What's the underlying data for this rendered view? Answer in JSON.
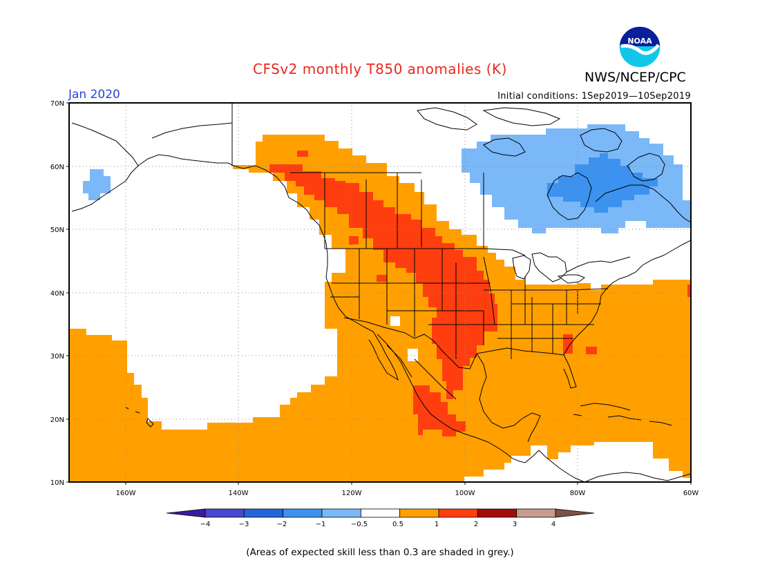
{
  "header": {
    "title": "CFSv2 monthly T850 anomalies (K)",
    "agency": "NWS/NCEP/CPC",
    "logo_text": "NOAA",
    "target_month": "Jan 2020",
    "initial_conditions": "Initial conditions: 1Sep2019—10Sep2019"
  },
  "axes": {
    "lat_labels": [
      "70N",
      "60N",
      "50N",
      "40N",
      "30N",
      "20N",
      "10N"
    ],
    "lon_labels": [
      "160W",
      "140W",
      "120W",
      "100W",
      "80W",
      "60W"
    ],
    "lat_range": [
      10,
      70
    ],
    "lon_range": [
      -170,
      -60
    ],
    "grid": true
  },
  "colorbar": {
    "labels": [
      "−4",
      "−3",
      "−2",
      "−1",
      "−0.5",
      "0.5",
      "1",
      "2",
      "3",
      "4"
    ],
    "colors": [
      "#3b1b9e",
      "#4b46cf",
      "#2266d8",
      "#3c92ee",
      "#7ab8f8",
      "#ffffff",
      "#ffa000",
      "#ff3e10",
      "#a40b0b",
      "#c59c8e",
      "#7a5244"
    ]
  },
  "regions": {
    "categories": [
      {
        "name": "-1 to -0.5",
        "color": "#7ab8f8"
      },
      {
        "name": "-2 to -1",
        "color": "#3c92ee"
      },
      {
        "name": "0.5 to 1",
        "color": "#ffa000"
      },
      {
        "name": "1 to 2",
        "color": "#ff3e10"
      }
    ]
  },
  "footnote": "(Areas of expected skill less than 0.3 are shaded in grey.)"
}
